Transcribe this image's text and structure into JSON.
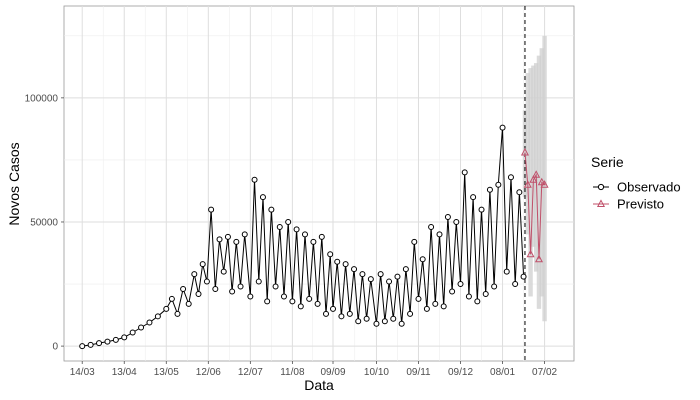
{
  "chart_data": {
    "type": "line",
    "title": "",
    "xlabel": "Data",
    "ylabel": "Novos Casos",
    "x_tick_labels": [
      "14/03",
      "13/04",
      "13/05",
      "12/06",
      "12/07",
      "11/08",
      "09/09",
      "10/10",
      "09/11",
      "09/12",
      "08/01",
      "07/02"
    ],
    "x_tick_dates": [
      "2020-03-14",
      "2020-04-13",
      "2020-05-13",
      "2020-06-12",
      "2020-07-12",
      "2020-08-11",
      "2020-09-09",
      "2020-10-10",
      "2020-11-09",
      "2020-12-09",
      "2021-01-08",
      "2021-02-07"
    ],
    "x_range": [
      "2020-03-01",
      "2021-02-28"
    ],
    "y_ticks": [
      0,
      50000,
      100000
    ],
    "y_tick_labels": [
      "0",
      "50000",
      "100000"
    ],
    "ylim": [
      -6000,
      137000
    ],
    "grid": true,
    "vline_date": "2021-01-24",
    "legend": {
      "title": "Serie",
      "position": "right",
      "entries": [
        {
          "label": "Observado",
          "color": "#000000",
          "marker": "circle"
        },
        {
          "label": "Previsto",
          "color": "#c0506a",
          "marker": "triangle"
        }
      ]
    },
    "series": [
      {
        "name": "Observado",
        "color": "#000000",
        "marker": "circle",
        "x": [
          "2020-03-14",
          "2020-03-20",
          "2020-03-26",
          "2020-04-01",
          "2020-04-07",
          "2020-04-13",
          "2020-04-19",
          "2020-04-25",
          "2020-05-01",
          "2020-05-07",
          "2020-05-13",
          "2020-05-17",
          "2020-05-21",
          "2020-05-25",
          "2020-05-29",
          "2020-06-02",
          "2020-06-05",
          "2020-06-08",
          "2020-06-11",
          "2020-06-14",
          "2020-06-17",
          "2020-06-20",
          "2020-06-23",
          "2020-06-26",
          "2020-06-29",
          "2020-07-02",
          "2020-07-05",
          "2020-07-08",
          "2020-07-12",
          "2020-07-15",
          "2020-07-18",
          "2020-07-21",
          "2020-07-24",
          "2020-07-27",
          "2020-07-30",
          "2020-08-02",
          "2020-08-05",
          "2020-08-08",
          "2020-08-11",
          "2020-08-14",
          "2020-08-17",
          "2020-08-20",
          "2020-08-23",
          "2020-08-26",
          "2020-08-29",
          "2020-09-01",
          "2020-09-04",
          "2020-09-07",
          "2020-09-09",
          "2020-09-12",
          "2020-09-15",
          "2020-09-18",
          "2020-09-21",
          "2020-09-24",
          "2020-09-27",
          "2020-09-30",
          "2020-10-03",
          "2020-10-06",
          "2020-10-10",
          "2020-10-13",
          "2020-10-16",
          "2020-10-19",
          "2020-10-22",
          "2020-10-25",
          "2020-10-28",
          "2020-10-31",
          "2020-11-03",
          "2020-11-06",
          "2020-11-09",
          "2020-11-12",
          "2020-11-15",
          "2020-11-18",
          "2020-11-21",
          "2020-11-24",
          "2020-11-27",
          "2020-11-30",
          "2020-12-03",
          "2020-12-06",
          "2020-12-09",
          "2020-12-12",
          "2020-12-15",
          "2020-12-18",
          "2020-12-21",
          "2020-12-24",
          "2020-12-27",
          "2020-12-30",
          "2021-01-02",
          "2021-01-05",
          "2021-01-08",
          "2021-01-11",
          "2021-01-14",
          "2021-01-17",
          "2021-01-20",
          "2021-01-23"
        ],
        "y": [
          0,
          500,
          1200,
          1800,
          2500,
          3500,
          5500,
          7500,
          9500,
          12000,
          15000,
          19000,
          13000,
          23000,
          17000,
          29000,
          21000,
          33000,
          26000,
          55000,
          23000,
          43000,
          30000,
          44000,
          22000,
          42000,
          24000,
          45000,
          20000,
          67000,
          26000,
          60000,
          18000,
          55000,
          24000,
          48000,
          20000,
          50000,
          18000,
          47000,
          16000,
          45000,
          19000,
          42000,
          17000,
          44000,
          13000,
          37000,
          15000,
          34000,
          12000,
          33000,
          13000,
          31000,
          10000,
          29000,
          11000,
          27000,
          9000,
          29000,
          10000,
          26000,
          11000,
          28000,
          9000,
          31000,
          13000,
          42000,
          19000,
          35000,
          15000,
          48000,
          17000,
          45000,
          16000,
          52000,
          22000,
          50000,
          25000,
          70000,
          20000,
          60000,
          18000,
          55000,
          21000,
          63000,
          24000,
          65000,
          88000,
          30000,
          68000,
          25000,
          62000,
          28000
        ]
      },
      {
        "name": "Previsto",
        "color": "#c0506a",
        "marker": "triangle",
        "x": [
          "2021-01-24",
          "2021-01-26",
          "2021-01-28",
          "2021-01-30",
          "2021-02-01",
          "2021-02-03",
          "2021-02-05",
          "2021-02-07"
        ],
        "y": [
          78000,
          65000,
          37000,
          67000,
          69000,
          35000,
          66000,
          65000
        ],
        "lower": [
          60000,
          45000,
          20000,
          40000,
          30000,
          15000,
          20000,
          10000
        ],
        "upper": [
          95000,
          110000,
          112000,
          113000,
          114000,
          117000,
          120000,
          125000
        ]
      }
    ]
  }
}
